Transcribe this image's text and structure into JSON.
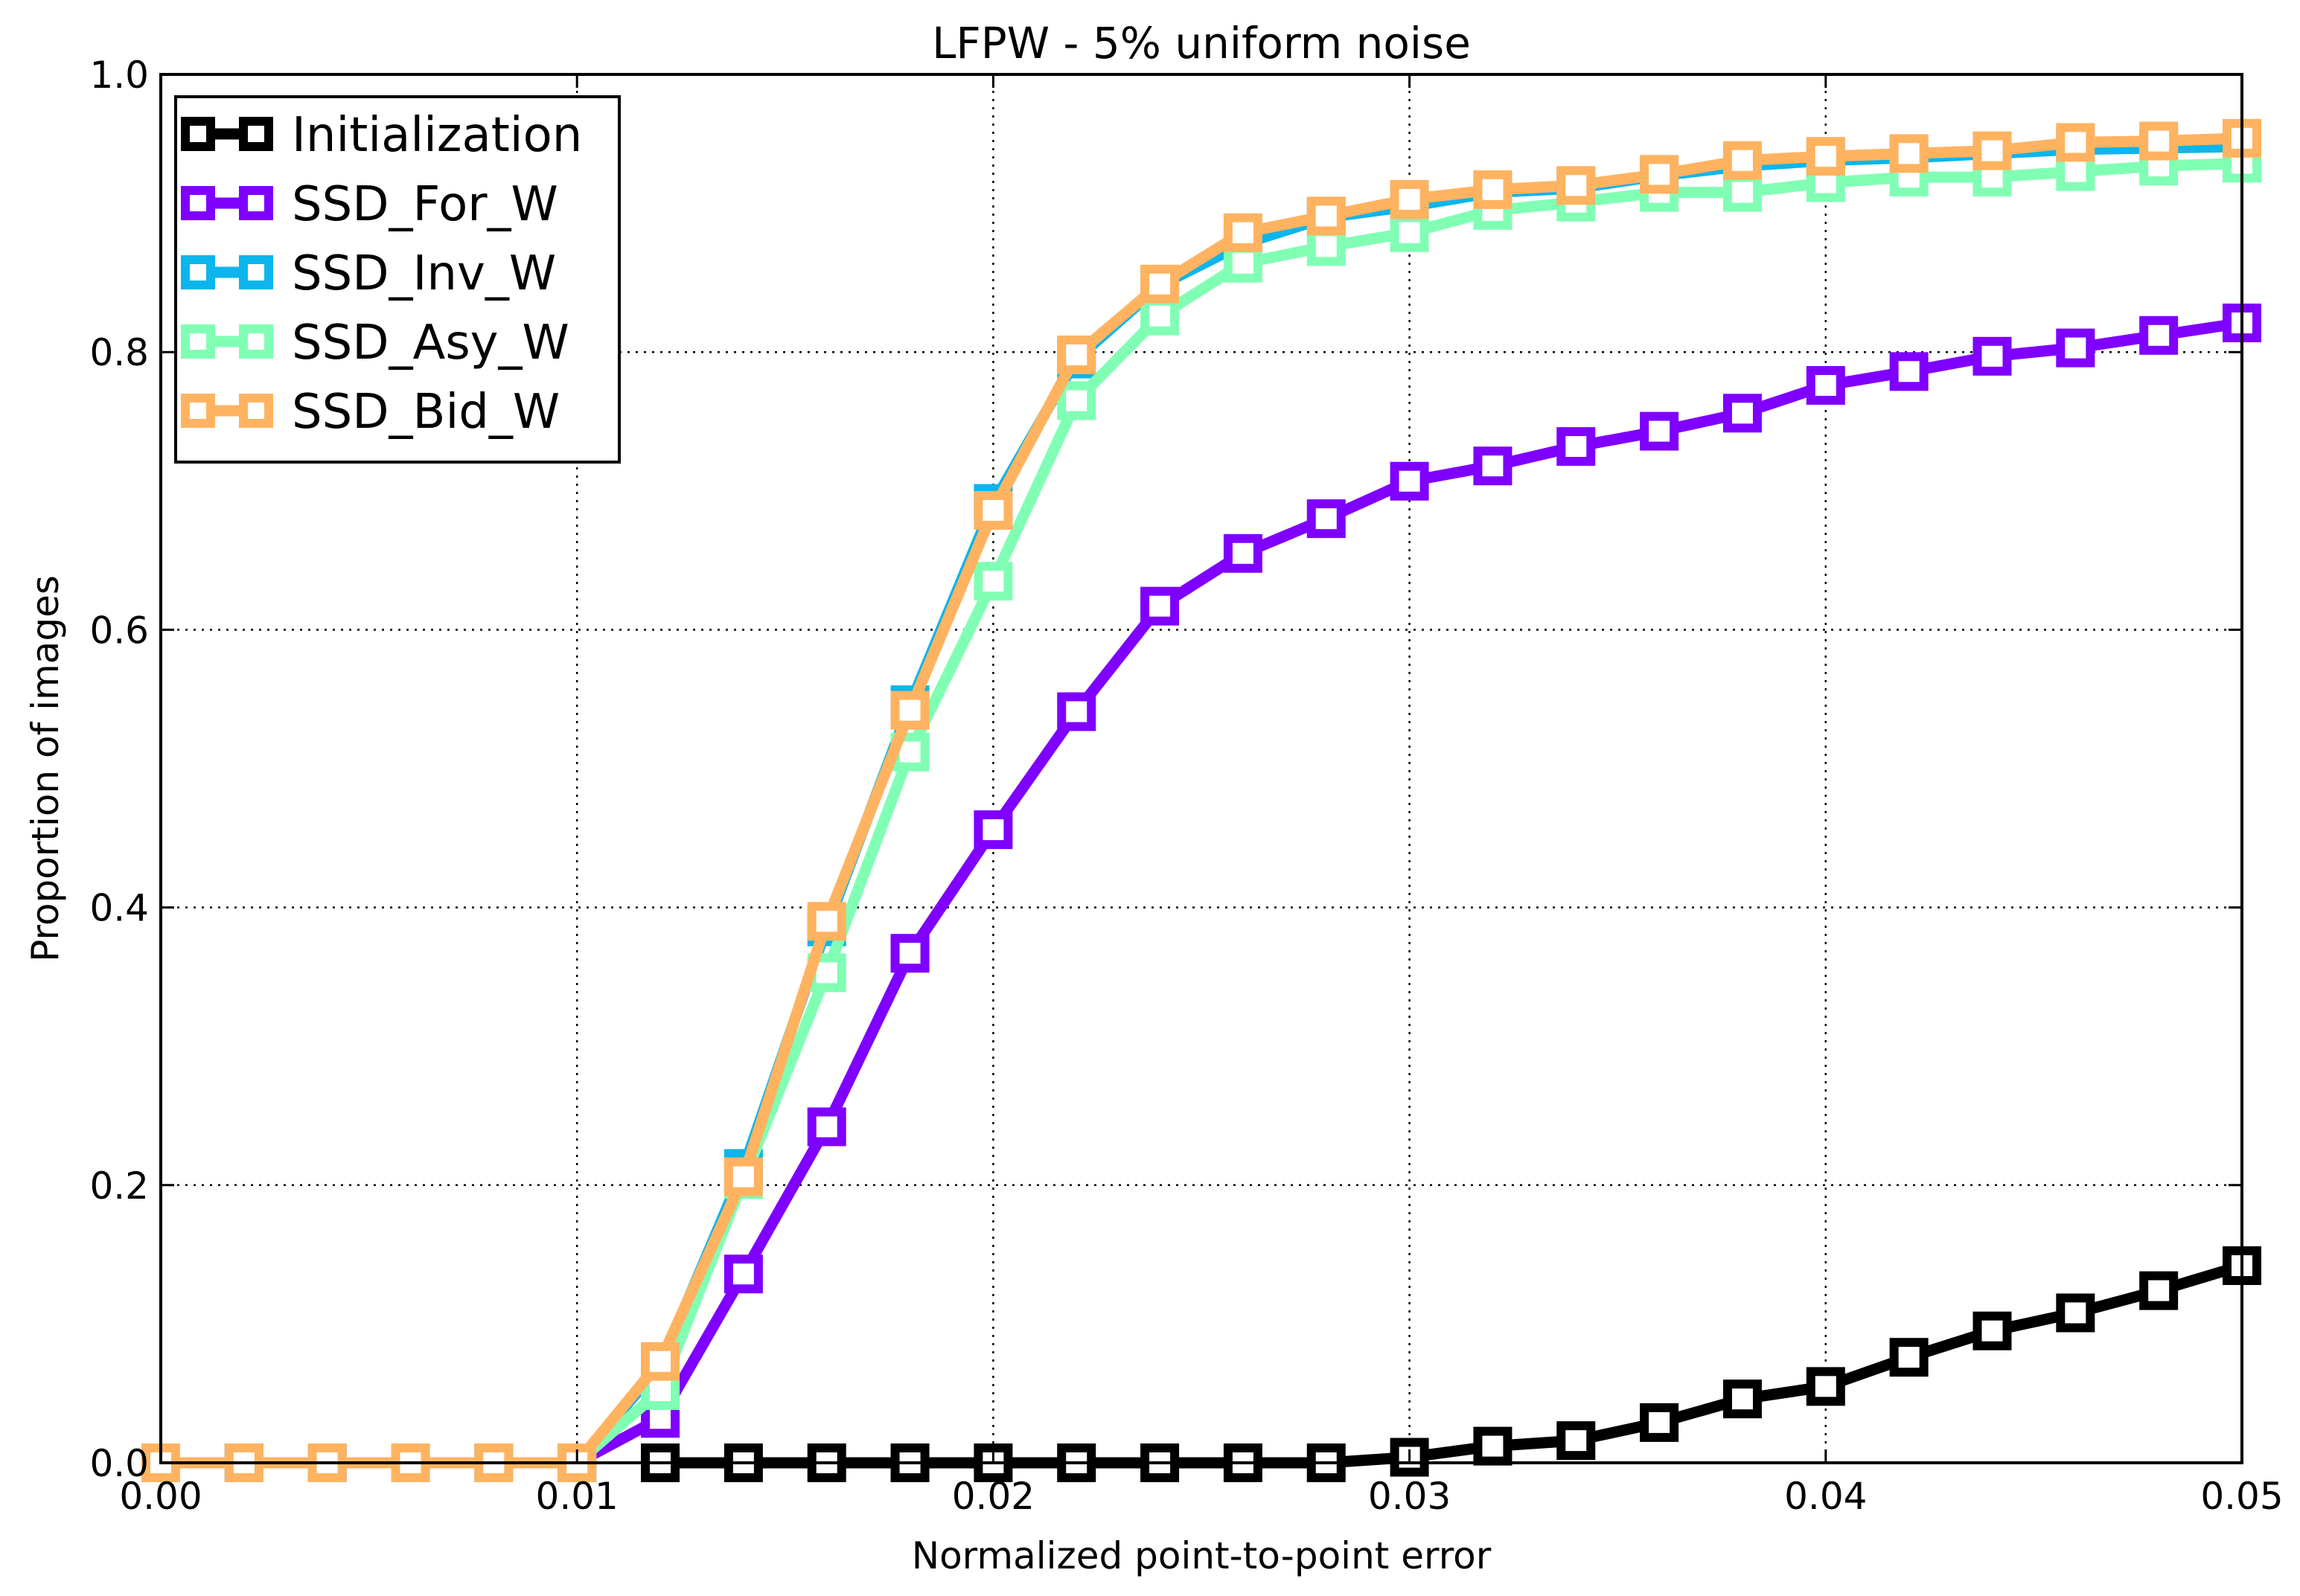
{
  "chart_data": {
    "type": "line",
    "title": "LFPW - 5% uniform noise",
    "xlabel": "Normalized point-to-point error",
    "ylabel": "Proportion of images",
    "xlim": [
      0.0,
      0.05
    ],
    "ylim": [
      0.0,
      1.0
    ],
    "xticks": [
      0.0,
      0.01,
      0.02,
      0.03,
      0.04,
      0.05
    ],
    "xtick_labels": [
      "0.00",
      "0.01",
      "0.02",
      "0.03",
      "0.04",
      "0.05"
    ],
    "yticks": [
      0.0,
      0.2,
      0.4,
      0.6,
      0.8,
      1.0
    ],
    "ytick_labels": [
      "0.0",
      "0.2",
      "0.4",
      "0.6",
      "0.8",
      "1.0"
    ],
    "grid": true,
    "legend_position": "top-left",
    "marker": "hollow-square",
    "x": [
      0.0,
      0.002,
      0.004,
      0.006,
      0.008,
      0.01,
      0.012,
      0.014,
      0.016,
      0.018,
      0.02,
      0.022,
      0.024,
      0.026,
      0.028,
      0.03,
      0.032,
      0.034,
      0.036,
      0.038,
      0.04,
      0.042,
      0.044,
      0.046,
      0.048,
      0.05
    ],
    "series": [
      {
        "name": "Initialization",
        "color": "#000000",
        "start_index": 6,
        "values": [
          null,
          null,
          null,
          null,
          null,
          null,
          0.0,
          0.0,
          0.0,
          0.0,
          0.0,
          0.0,
          0.0,
          0.0,
          0.0,
          0.004,
          0.012,
          0.016,
          0.029,
          0.046,
          0.055,
          0.076,
          0.095,
          0.108,
          0.124,
          0.142
        ]
      },
      {
        "name": "SSD_For_W",
        "color": "#7f00ff",
        "start_index": 0,
        "values": [
          0.0,
          0.0,
          0.0,
          0.0,
          0.0,
          0.0,
          0.032,
          0.136,
          0.242,
          0.367,
          0.456,
          0.541,
          0.617,
          0.655,
          0.68,
          0.707,
          0.718,
          0.732,
          0.743,
          0.756,
          0.776,
          0.786,
          0.797,
          0.803,
          0.812,
          0.821
        ]
      },
      {
        "name": "SSD_Inv_W",
        "color": "#0cb5eb",
        "start_index": 0,
        "values": [
          0.0,
          0.0,
          0.0,
          0.0,
          0.0,
          0.0,
          0.07,
          0.212,
          0.386,
          0.546,
          0.691,
          0.795,
          0.848,
          0.878,
          0.897,
          0.905,
          0.915,
          0.918,
          0.927,
          0.934,
          0.938,
          0.94,
          0.943,
          0.946,
          0.947,
          0.948
        ]
      },
      {
        "name": "SSD_Asy_W",
        "color": "#80ffb4",
        "start_index": 0,
        "values": [
          0.0,
          0.0,
          0.0,
          0.0,
          0.0,
          0.0,
          0.052,
          0.204,
          0.353,
          0.512,
          0.635,
          0.765,
          0.826,
          0.864,
          0.876,
          0.886,
          0.902,
          0.908,
          0.915,
          0.915,
          0.922,
          0.926,
          0.926,
          0.93,
          0.934,
          0.936
        ]
      },
      {
        "name": "SSD_Bid_W",
        "color": "#ffb360",
        "start_index": 0,
        "values": [
          0.0,
          0.0,
          0.0,
          0.0,
          0.0,
          0.0,
          0.073,
          0.206,
          0.39,
          0.542,
          0.686,
          0.798,
          0.849,
          0.886,
          0.898,
          0.91,
          0.917,
          0.92,
          0.928,
          0.938,
          0.941,
          0.943,
          0.945,
          0.951,
          0.952,
          0.954
        ]
      }
    ]
  }
}
